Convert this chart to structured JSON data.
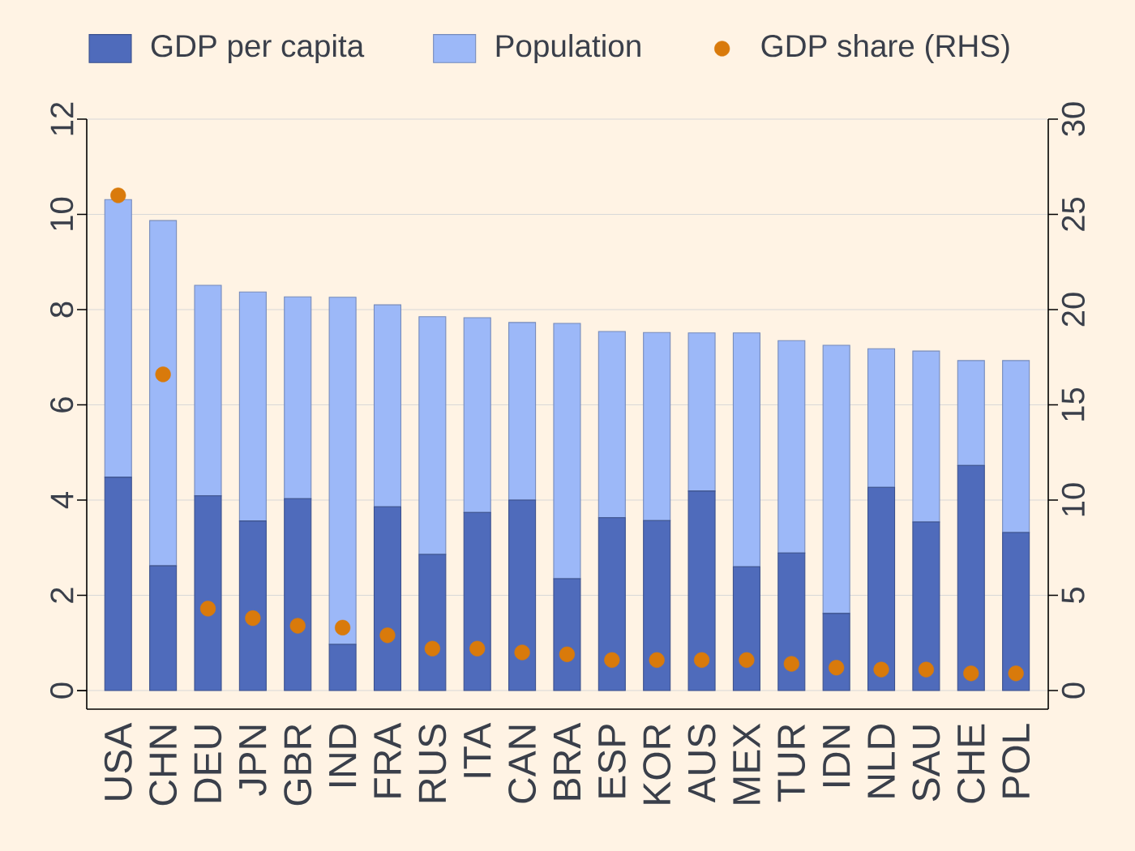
{
  "chart_data": {
    "type": "bar",
    "stacked": true,
    "categories": [
      "USA",
      "CHN",
      "DEU",
      "JPN",
      "GBR",
      "IND",
      "FRA",
      "RUS",
      "ITA",
      "CAN",
      "BRA",
      "ESP",
      "KOR",
      "AUS",
      "MEX",
      "TUR",
      "IDN",
      "NLD",
      "SAU",
      "CHE",
      "POL"
    ],
    "series": [
      {
        "name": "GDP per capita",
        "color": "#4f6bbb",
        "values": [
          4.48,
          2.62,
          4.09,
          3.56,
          4.03,
          0.97,
          3.86,
          2.86,
          3.74,
          4.0,
          2.35,
          3.63,
          3.57,
          4.19,
          2.6,
          2.89,
          1.62,
          4.27,
          3.54,
          4.73,
          3.32
        ]
      },
      {
        "name": "Population",
        "color": "#9cb8f8",
        "values": [
          5.83,
          7.25,
          4.42,
          4.81,
          4.24,
          7.29,
          4.24,
          4.99,
          4.09,
          3.73,
          5.36,
          3.91,
          3.95,
          3.32,
          4.91,
          4.46,
          5.63,
          2.91,
          3.59,
          2.2,
          3.61
        ]
      },
      {
        "name": "GDP share (RHS)",
        "type": "scatter",
        "axis": "y2",
        "color": "#d97a0b",
        "values": [
          26.0,
          16.6,
          4.3,
          3.8,
          3.4,
          3.3,
          2.9,
          2.2,
          2.2,
          2.0,
          1.9,
          1.6,
          1.6,
          1.6,
          1.6,
          1.4,
          1.2,
          1.1,
          1.1,
          0.9,
          0.9
        ]
      }
    ],
    "ylim": [
      -0.39,
      12
    ],
    "yticks": [
      0,
      2,
      4,
      6,
      8,
      10,
      12
    ],
    "y2lim": [
      -0.98,
      30
    ],
    "y2ticks": [
      0,
      5,
      10,
      15,
      20,
      25,
      30
    ],
    "grid": "y",
    "legend": "top",
    "marker": "circle"
  }
}
